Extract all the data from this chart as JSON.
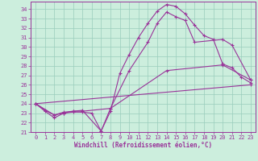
{
  "xlabel": "Windchill (Refroidissement éolien,°C)",
  "bg_color": "#cceedd",
  "line_color": "#993399",
  "grid_color": "#99ccbb",
  "xlim": [
    -0.5,
    23.5
  ],
  "ylim": [
    21,
    34.8
  ],
  "xticks": [
    0,
    1,
    2,
    3,
    4,
    5,
    6,
    7,
    8,
    9,
    10,
    11,
    12,
    13,
    14,
    15,
    16,
    17,
    18,
    19,
    20,
    21,
    22,
    23
  ],
  "yticks": [
    21,
    22,
    23,
    24,
    25,
    26,
    27,
    28,
    29,
    30,
    31,
    32,
    33,
    34
  ],
  "series": [
    {
      "x": [
        0,
        1,
        2,
        3,
        4,
        5,
        6,
        7,
        8,
        9,
        10,
        11,
        12,
        13,
        14,
        15,
        16,
        17,
        18,
        19,
        20,
        21,
        22,
        23
      ],
      "y": [
        24,
        23.2,
        22.5,
        23.0,
        23.1,
        23.1,
        23.0,
        21.1,
        23.2,
        27.2,
        29.2,
        31.0,
        32.5,
        33.8,
        34.5,
        34.3,
        33.5,
        32.3,
        31.2,
        30.8,
        28.2,
        27.8,
        26.8,
        26.2
      ]
    },
    {
      "x": [
        0,
        2,
        3,
        4,
        5,
        8,
        10,
        12,
        13,
        14,
        15,
        16,
        17,
        20,
        21,
        23
      ],
      "y": [
        24,
        22.8,
        23.0,
        23.2,
        23.2,
        23.5,
        27.5,
        30.5,
        32.5,
        33.7,
        33.2,
        32.8,
        30.5,
        30.8,
        30.2,
        26.5
      ]
    },
    {
      "x": [
        0,
        23
      ],
      "y": [
        24,
        26.0
      ]
    },
    {
      "x": [
        0,
        1,
        2,
        3,
        4,
        5,
        7,
        8,
        14,
        20,
        23
      ],
      "y": [
        24,
        23.3,
        22.8,
        23.1,
        23.2,
        23.3,
        21.1,
        23.5,
        27.5,
        28.1,
        26.5
      ]
    }
  ]
}
